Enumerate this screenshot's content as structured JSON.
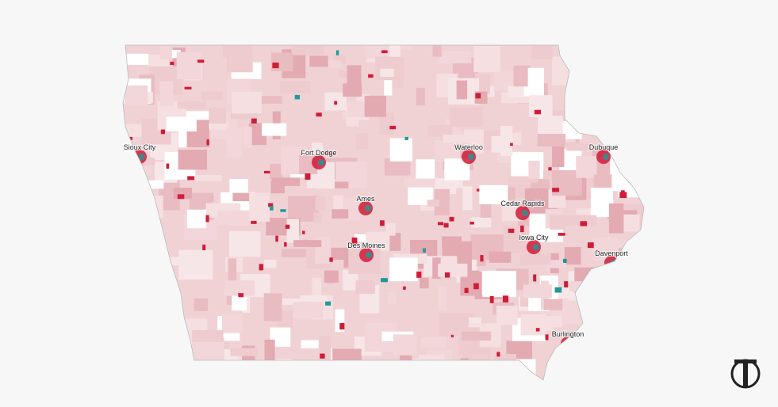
{
  "map": {
    "cities": [
      {
        "label": "Sioux City"
      },
      {
        "label": "Fort Dodge"
      },
      {
        "label": "Waterloo"
      },
      {
        "label": "Dubuque"
      },
      {
        "label": "Ames"
      },
      {
        "label": "Cedar Rapids"
      },
      {
        "label": "Iowa City"
      },
      {
        "label": "Des Moines"
      },
      {
        "label": "Davenport"
      },
      {
        "label": "Burlington"
      }
    ]
  }
}
